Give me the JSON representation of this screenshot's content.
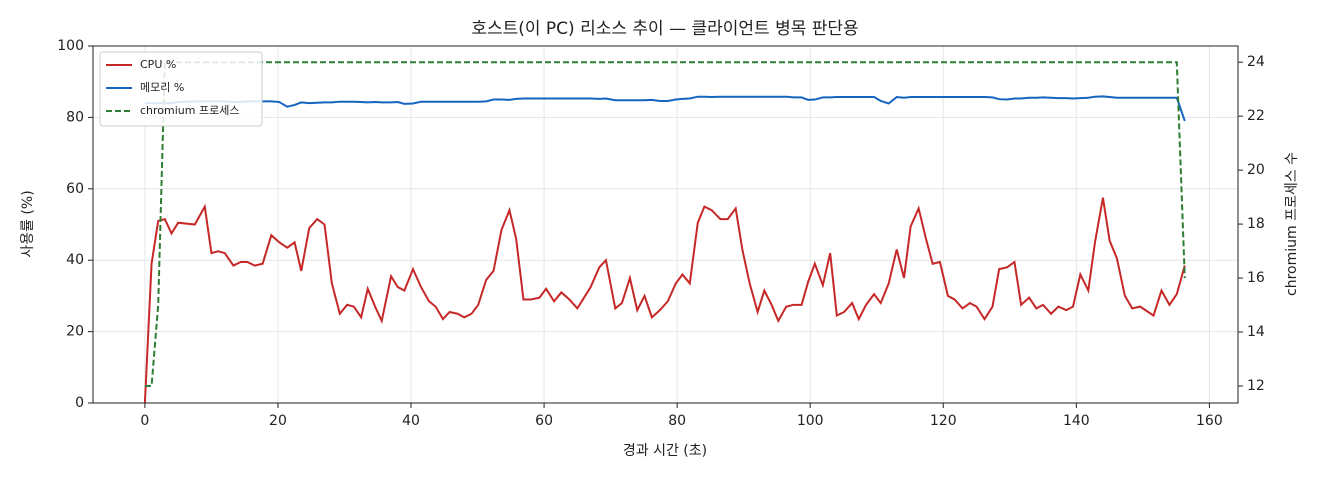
{
  "chart_data": {
    "type": "line",
    "title": "호스트(이 PC) 리소스 추이 — 클라이언트 병목 판단용",
    "x_label": "경과 시간 (초)",
    "y_label": "사용률 (%)",
    "y2_label": "chromium 프로세스 수",
    "x": [
      0,
      1,
      2,
      3,
      4,
      5,
      7.5,
      9,
      10,
      11,
      12,
      13.3,
      14.4,
      15.4,
      16.5,
      17.7,
      19,
      20.2,
      21.4,
      22.5,
      23.5,
      24.7,
      25.9,
      27,
      28.1,
      29.3,
      30.4,
      31.4,
      32.5,
      33.5,
      34.6,
      35.6,
      37,
      38,
      39,
      40.3,
      41.5,
      42.7,
      43.7,
      44.8,
      45.8,
      47,
      48,
      49.1,
      50.1,
      51.3,
      52.4,
      53.6,
      54.8,
      55.8,
      56.9,
      58,
      59.3,
      60.3,
      61.5,
      62.6,
      63.8,
      65,
      66,
      67,
      68.3,
      69.3,
      70.7,
      71.7,
      72.9,
      74,
      75.1,
      76.2,
      77.4,
      78.6,
      79.8,
      80.8,
      81.9,
      83.1,
      84.1,
      85.2,
      86.5,
      87.6,
      88.8,
      89.8,
      90.9,
      92.1,
      93.1,
      94.2,
      95.2,
      96.4,
      97.5,
      98.7,
      99.7,
      100.7,
      101.9,
      103,
      104,
      105.1,
      106.3,
      107.3,
      108.4,
      109.6,
      110.6,
      111.8,
      113,
      114.1,
      115.1,
      116.3,
      117.4,
      118.4,
      119.5,
      120.7,
      121.7,
      122.9,
      124,
      125,
      126.2,
      127.4,
      128.4,
      129.6,
      130.7,
      131.7,
      132.9,
      134,
      135,
      136.2,
      137.3,
      138.5,
      139.5,
      140.6,
      141.8,
      142.8,
      144,
      145,
      146.1,
      147.3,
      148.4,
      149.6,
      151.6,
      152.8,
      154,
      155.1,
      156.3
    ],
    "series": [
      {
        "name": "CPU %",
        "color": "#c62828",
        "axis": "y",
        "linestyle": "solid",
        "values": [
          0,
          39,
          51,
          51.5,
          47.5,
          50.5,
          50,
          55,
          42,
          42.5,
          42,
          38.5,
          39.5,
          39.5,
          38.5,
          39,
          47,
          45,
          43.5,
          45,
          37,
          49,
          51.5,
          50,
          33.5,
          25,
          27.5,
          27,
          24,
          32,
          27,
          23,
          35.5,
          32.5,
          31.5,
          37.5,
          32.5,
          28.5,
          27,
          23.5,
          25.5,
          25,
          24,
          25,
          27.5,
          34.5,
          37,
          48.5,
          54,
          46,
          29,
          29,
          29.5,
          32,
          28.5,
          31,
          29,
          26.5,
          29.5,
          32.5,
          38,
          40,
          26.5,
          28,
          35,
          26,
          30,
          24,
          26,
          28.5,
          33.5,
          36,
          33.5,
          50.5,
          55,
          54,
          51.5,
          51.5,
          54.5,
          43,
          33.5,
          25.5,
          31.5,
          27.5,
          23,
          27,
          27.5,
          27.5,
          34,
          39,
          33,
          42,
          24.5,
          25.5,
          28,
          23.5,
          27.5,
          30.5,
          28,
          33.5,
          43,
          35,
          49.5,
          54.5,
          46,
          39,
          39.5,
          30,
          29,
          26.5,
          28,
          27,
          23.5,
          27,
          37.5,
          38,
          39.5,
          27.5,
          29.5,
          26.5,
          27.5,
          25,
          27,
          26,
          27,
          36,
          31.5,
          45,
          57.5,
          45.5,
          40.5,
          30,
          26.5,
          27,
          24.5,
          31.5,
          27.5,
          30.5,
          38.5
        ]
      },
      {
        "name": "메모리 %",
        "color": "#1565c0",
        "axis": "y",
        "linestyle": "solid",
        "values": [
          84,
          84,
          84,
          84,
          84,
          84.3,
          84.5,
          84.5,
          84.5,
          84.5,
          84.5,
          84.3,
          84.3,
          84.5,
          84.5,
          84.5,
          84.5,
          84.3,
          83,
          83.5,
          84.2,
          84,
          84.1,
          84.2,
          84.2,
          84.4,
          84.4,
          84.4,
          84.3,
          84.2,
          84.3,
          84.2,
          84.2,
          84.3,
          83.8,
          83.9,
          84.4,
          84.4,
          84.4,
          84.4,
          84.4,
          84.4,
          84.4,
          84.4,
          84.4,
          84.5,
          85,
          85,
          84.9,
          85.2,
          85.3,
          85.3,
          85.3,
          85.3,
          85.3,
          85.3,
          85.3,
          85.3,
          85.3,
          85.3,
          85.2,
          85.3,
          84.8,
          84.8,
          84.8,
          84.8,
          84.8,
          84.9,
          84.6,
          84.6,
          85,
          85.2,
          85.3,
          85.8,
          85.8,
          85.7,
          85.8,
          85.8,
          85.8,
          85.8,
          85.8,
          85.8,
          85.8,
          85.8,
          85.8,
          85.8,
          85.6,
          85.6,
          84.9,
          85,
          85.6,
          85.6,
          85.7,
          85.7,
          85.7,
          85.7,
          85.7,
          85.7,
          84.6,
          83.9,
          85.7,
          85.5,
          85.7,
          85.7,
          85.7,
          85.7,
          85.7,
          85.7,
          85.7,
          85.7,
          85.7,
          85.7,
          85.7,
          85.6,
          85.1,
          85,
          85.3,
          85.3,
          85.5,
          85.5,
          85.6,
          85.5,
          85.4,
          85.4,
          85.3,
          85.4,
          85.5,
          85.8,
          85.9,
          85.7,
          85.5,
          85.5,
          85.5,
          85.5,
          85.5,
          85.5,
          85.5,
          85.5,
          79
        ]
      },
      {
        "name": "chromium 프로세스",
        "color": "#2e7d32",
        "axis": "y2",
        "linestyle": "dashed",
        "values": [
          12,
          12,
          15,
          24,
          24,
          24,
          24,
          24,
          24,
          24,
          24,
          24,
          24,
          24,
          24,
          24,
          24,
          24,
          24,
          24,
          24,
          24,
          24,
          24,
          24,
          24,
          24,
          24,
          24,
          24,
          24,
          24,
          24,
          24,
          24,
          24,
          24,
          24,
          24,
          24,
          24,
          24,
          24,
          24,
          24,
          24,
          24,
          24,
          24,
          24,
          24,
          24,
          24,
          24,
          24,
          24,
          24,
          24,
          24,
          24,
          24,
          24,
          24,
          24,
          24,
          24,
          24,
          24,
          24,
          24,
          24,
          24,
          24,
          24,
          24,
          24,
          24,
          24,
          24,
          24,
          24,
          24,
          24,
          24,
          24,
          24,
          24,
          24,
          24,
          24,
          24,
          24,
          24,
          24,
          24,
          24,
          24,
          24,
          24,
          24,
          24,
          24,
          24,
          24,
          24,
          24,
          24,
          24,
          24,
          24,
          24,
          24,
          24,
          24,
          24,
          24,
          24,
          24,
          24,
          24,
          24,
          24,
          24,
          24,
          24,
          24,
          24,
          24,
          24,
          24,
          24,
          24,
          24,
          24,
          24,
          24,
          24,
          24,
          16
        ]
      }
    ],
    "xlim": [
      -7.8,
      164.3
    ],
    "xticks": [
      0,
      20,
      40,
      60,
      80,
      100,
      120,
      140,
      160
    ],
    "ylim": [
      0,
      100
    ],
    "yticks": [
      0,
      20,
      40,
      60,
      80,
      100
    ],
    "y2lim": [
      11.37,
      24.6
    ],
    "y2ticks": [
      12,
      14,
      16,
      18,
      20,
      22,
      24
    ],
    "grid": true,
    "legend": "upper-left"
  }
}
